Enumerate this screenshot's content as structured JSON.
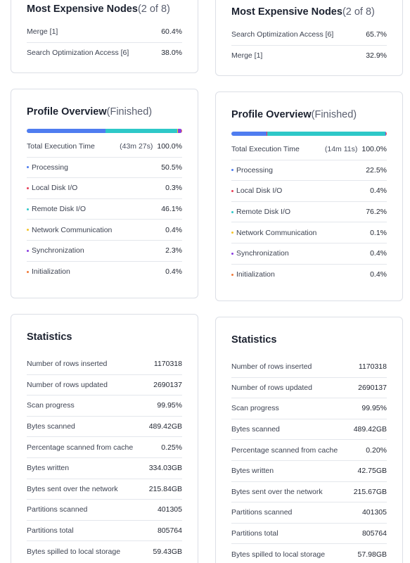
{
  "colors": {
    "processing": "#4f7df0",
    "local_disk": "#e8405a",
    "remote_disk": "#2ec8c8",
    "network": "#f5c52a",
    "synchronization": "#8b3fe0",
    "initialization": "#f07a3a"
  },
  "left": {
    "expensive": {
      "title": "Most Expensive Nodes",
      "subtitle": "(2 of 8)",
      "rows": [
        {
          "label": "Merge [1]",
          "value": "60.4%"
        },
        {
          "label": "Search Optimization Access [6]",
          "value": "38.0%"
        }
      ]
    },
    "profile": {
      "title": "Profile Overview",
      "subtitle": "(Finished)",
      "total_label": "Total Execution Time",
      "total_duration": "(43m 27s)",
      "total_value": "100.0%",
      "progress": [
        {
          "key": "processing",
          "pct": 50.5
        },
        {
          "key": "local_disk",
          "pct": 0.3
        },
        {
          "key": "remote_disk",
          "pct": 46.1
        },
        {
          "key": "network",
          "pct": 0.4
        },
        {
          "key": "synchronization",
          "pct": 2.3
        },
        {
          "key": "initialization",
          "pct": 0.4
        }
      ],
      "rows": [
        {
          "label": "Processing",
          "value": "50.5%"
        },
        {
          "label": "Local Disk I/O",
          "value": "0.3%"
        },
        {
          "label": "Remote Disk I/O",
          "value": "46.1%"
        },
        {
          "label": "Network Communication",
          "value": "0.4%"
        },
        {
          "label": "Synchronization",
          "value": "2.3%"
        },
        {
          "label": "Initialization",
          "value": "0.4%"
        }
      ]
    },
    "statistics": {
      "title": "Statistics",
      "rows": [
        {
          "label": "Number of rows inserted",
          "value": "1170318"
        },
        {
          "label": "Number of rows updated",
          "value": "2690137"
        },
        {
          "label": "Scan progress",
          "value": "99.95%"
        },
        {
          "label": "Bytes scanned",
          "value": "489.42GB"
        },
        {
          "label": "Percentage scanned from cache",
          "value": "0.25%"
        },
        {
          "label": "Bytes written",
          "value": "334.03GB"
        },
        {
          "label": "Bytes sent over the network",
          "value": "215.84GB"
        },
        {
          "label": "Partitions scanned",
          "value": "401305"
        },
        {
          "label": "Partitions total",
          "value": "805764"
        },
        {
          "label": "Bytes spilled to local storage",
          "value": "59.43GB"
        }
      ]
    }
  },
  "right": {
    "expensive": {
      "title": "Most Expensive Nodes",
      "subtitle": "(2 of 8)",
      "rows": [
        {
          "label": "Search Optimization Access [6]",
          "value": "65.7%"
        },
        {
          "label": "Merge [1]",
          "value": "32.9%"
        }
      ]
    },
    "profile": {
      "title": "Profile Overview",
      "subtitle": "(Finished)",
      "total_label": "Total Execution Time",
      "total_duration": "(14m 11s)",
      "total_value": "100.0%",
      "progress": [
        {
          "key": "processing",
          "pct": 22.5
        },
        {
          "key": "local_disk",
          "pct": 0.4
        },
        {
          "key": "remote_disk",
          "pct": 76.2
        },
        {
          "key": "network",
          "pct": 0.1
        },
        {
          "key": "synchronization",
          "pct": 0.4
        },
        {
          "key": "initialization",
          "pct": 0.4
        }
      ],
      "rows": [
        {
          "label": "Processing",
          "value": "22.5%"
        },
        {
          "label": "Local Disk I/O",
          "value": "0.4%"
        },
        {
          "label": "Remote Disk I/O",
          "value": "76.2%"
        },
        {
          "label": "Network Communication",
          "value": "0.1%"
        },
        {
          "label": "Synchronization",
          "value": "0.4%"
        },
        {
          "label": "Initialization",
          "value": "0.4%"
        }
      ]
    },
    "statistics": {
      "title": "Statistics",
      "rows": [
        {
          "label": "Number of rows inserted",
          "value": "1170318"
        },
        {
          "label": "Number of rows updated",
          "value": "2690137"
        },
        {
          "label": "Scan progress",
          "value": "99.95%"
        },
        {
          "label": "Bytes scanned",
          "value": "489.42GB"
        },
        {
          "label": "Percentage scanned from cache",
          "value": "0.20%"
        },
        {
          "label": "Bytes written",
          "value": "42.75GB"
        },
        {
          "label": "Bytes sent over the network",
          "value": "215.67GB"
        },
        {
          "label": "Partitions scanned",
          "value": "401305"
        },
        {
          "label": "Partitions total",
          "value": "805764"
        },
        {
          "label": "Bytes spilled to local storage",
          "value": "57.98GB"
        }
      ]
    }
  }
}
